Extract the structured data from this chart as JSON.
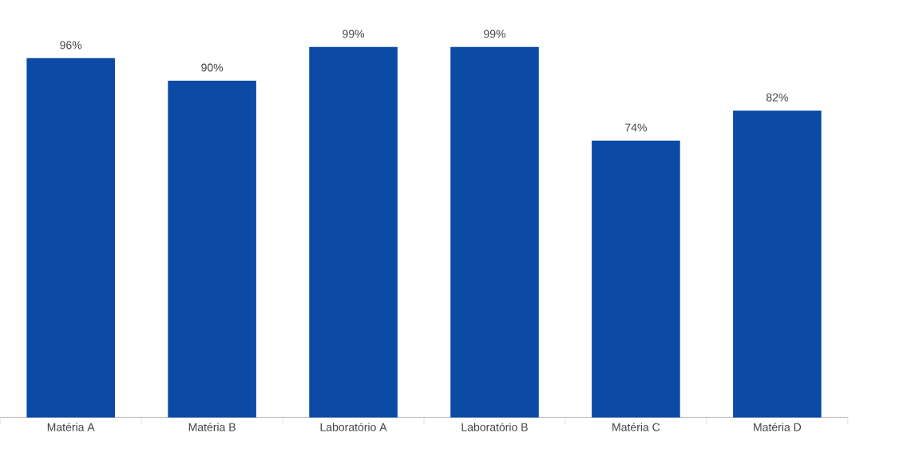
{
  "chart_data": {
    "type": "bar",
    "categories": [
      "Matéria A",
      "Matéria B",
      "Laboratório A",
      "Laboratório B",
      "Matéria C",
      "Matéria D"
    ],
    "values": [
      96,
      90,
      99,
      99,
      74,
      82
    ],
    "value_labels": [
      "96%",
      "90%",
      "99%",
      "99%",
      "74%",
      "82%"
    ],
    "color": "#0b4aa5"
  }
}
